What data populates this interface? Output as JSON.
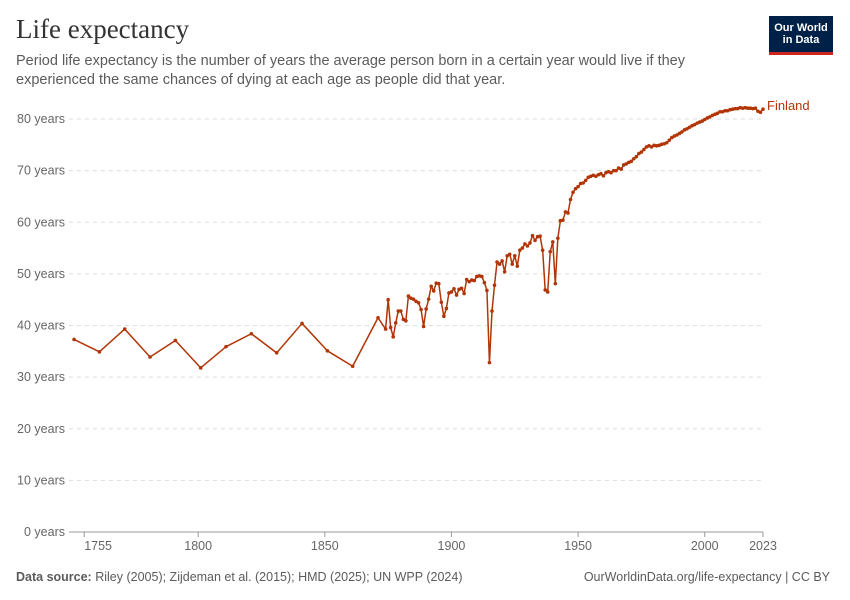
{
  "header": {
    "title": "Life expectancy",
    "subtitle": "Period life expectancy is the number of years the average person born in a certain year would live if they experienced the same chances of dying at each age as people did that year."
  },
  "logo": {
    "line1": "Our World",
    "line2": "in Data",
    "bg_color": "#002147",
    "accent_color": "#ce261e"
  },
  "footer": {
    "source_label": "Data source:",
    "source_text": "Riley (2005); Zijdeman et al. (2015); HMD (2025); UN WPP (2024)",
    "credit": "OurWorldinData.org/life-expectancy | CC BY"
  },
  "chart_data": {
    "type": "line",
    "xlim": [
      1749,
      2023
    ],
    "ylim": [
      0,
      80
    ],
    "x_ticks": [
      1755,
      1800,
      1850,
      1900,
      1950,
      2000,
      2023
    ],
    "y_ticks": [
      {
        "value": 0,
        "label": "0 years"
      },
      {
        "value": 10,
        "label": "10 years"
      },
      {
        "value": 20,
        "label": "20 years"
      },
      {
        "value": 30,
        "label": "30 years"
      },
      {
        "value": 40,
        "label": "40 years"
      },
      {
        "value": 50,
        "label": "50 years"
      },
      {
        "value": 60,
        "label": "60 years"
      },
      {
        "value": 70,
        "label": "70 years"
      },
      {
        "value": 80,
        "label": "80 years"
      }
    ],
    "grid": "horizontal-dashed",
    "series": [
      {
        "name": "Finland",
        "color": "#b13507",
        "points": [
          [
            1751,
            37.3
          ],
          [
            1761,
            34.9
          ],
          [
            1771,
            39.3
          ],
          [
            1781,
            33.9
          ],
          [
            1791,
            37.1
          ],
          [
            1801,
            31.8
          ],
          [
            1811,
            35.9
          ],
          [
            1821,
            38.4
          ],
          [
            1831,
            34.7
          ],
          [
            1841,
            40.4
          ],
          [
            1851,
            35.1
          ],
          [
            1861,
            32.1
          ],
          [
            1871,
            41.5
          ],
          [
            1874,
            39.3
          ],
          [
            1875,
            45.0
          ],
          [
            1876,
            39.6
          ],
          [
            1877,
            37.8
          ],
          [
            1878,
            40.5
          ],
          [
            1879,
            42.8
          ],
          [
            1880,
            42.8
          ],
          [
            1881,
            41.2
          ],
          [
            1882,
            40.9
          ],
          [
            1883,
            45.7
          ],
          [
            1884,
            45.3
          ],
          [
            1885,
            45.1
          ],
          [
            1886,
            44.7
          ],
          [
            1887,
            44.4
          ],
          [
            1888,
            43.1
          ],
          [
            1889,
            39.8
          ],
          [
            1890,
            43.2
          ],
          [
            1891,
            45.1
          ],
          [
            1892,
            47.6
          ],
          [
            1893,
            46.7
          ],
          [
            1894,
            48.2
          ],
          [
            1895,
            48.1
          ],
          [
            1896,
            44.5
          ],
          [
            1897,
            41.8
          ],
          [
            1898,
            43.3
          ],
          [
            1899,
            46.3
          ],
          [
            1900,
            46.5
          ],
          [
            1901,
            47.1
          ],
          [
            1902,
            45.9
          ],
          [
            1903,
            47.0
          ],
          [
            1904,
            47.2
          ],
          [
            1905,
            46.2
          ],
          [
            1906,
            48.9
          ],
          [
            1907,
            48.5
          ],
          [
            1908,
            48.8
          ],
          [
            1909,
            48.7
          ],
          [
            1910,
            49.5
          ],
          [
            1911,
            49.6
          ],
          [
            1912,
            49.5
          ],
          [
            1913,
            48.3
          ],
          [
            1914,
            46.8
          ],
          [
            1915,
            32.8
          ],
          [
            1916,
            42.8
          ],
          [
            1917,
            47.8
          ],
          [
            1918,
            52.3
          ],
          [
            1919,
            51.9
          ],
          [
            1920,
            52.5
          ],
          [
            1921,
            50.4
          ],
          [
            1922,
            53.5
          ],
          [
            1923,
            53.8
          ],
          [
            1924,
            51.9
          ],
          [
            1925,
            53.5
          ],
          [
            1926,
            51.5
          ],
          [
            1927,
            54.6
          ],
          [
            1928,
            55.0
          ],
          [
            1929,
            55.8
          ],
          [
            1930,
            55.4
          ],
          [
            1931,
            56.0
          ],
          [
            1932,
            57.4
          ],
          [
            1933,
            56.5
          ],
          [
            1934,
            57.2
          ],
          [
            1935,
            57.3
          ],
          [
            1936,
            54.6
          ],
          [
            1937,
            46.9
          ],
          [
            1938,
            46.5
          ],
          [
            1939,
            54.3
          ],
          [
            1940,
            56.2
          ],
          [
            1941,
            48.1
          ],
          [
            1942,
            56.9
          ],
          [
            1943,
            60.3
          ],
          [
            1944,
            60.4
          ],
          [
            1945,
            62.0
          ],
          [
            1946,
            61.8
          ],
          [
            1947,
            64.4
          ],
          [
            1948,
            65.8
          ],
          [
            1949,
            66.5
          ],
          [
            1950,
            66.9
          ],
          [
            1951,
            67.5
          ],
          [
            1952,
            67.6
          ],
          [
            1953,
            68.1
          ],
          [
            1954,
            68.7
          ],
          [
            1955,
            68.9
          ],
          [
            1956,
            69.1
          ],
          [
            1957,
            68.9
          ],
          [
            1958,
            69.2
          ],
          [
            1959,
            69.4
          ],
          [
            1960,
            69.0
          ],
          [
            1961,
            69.6
          ],
          [
            1962,
            69.8
          ],
          [
            1963,
            69.6
          ],
          [
            1964,
            70.0
          ],
          [
            1965,
            70.0
          ],
          [
            1966,
            70.5
          ],
          [
            1967,
            70.3
          ],
          [
            1968,
            71.1
          ],
          [
            1969,
            71.3
          ],
          [
            1970,
            71.6
          ],
          [
            1971,
            71.8
          ],
          [
            1972,
            72.3
          ],
          [
            1973,
            72.7
          ],
          [
            1974,
            73.3
          ],
          [
            1975,
            73.6
          ],
          [
            1976,
            74.1
          ],
          [
            1977,
            74.6
          ],
          [
            1978,
            74.8
          ],
          [
            1979,
            74.6
          ],
          [
            1980,
            74.9
          ],
          [
            1981,
            74.8
          ],
          [
            1982,
            74.9
          ],
          [
            1983,
            75.1
          ],
          [
            1984,
            75.2
          ],
          [
            1985,
            75.4
          ],
          [
            1986,
            75.9
          ],
          [
            1987,
            76.4
          ],
          [
            1988,
            76.7
          ],
          [
            1989,
            76.9
          ],
          [
            1990,
            77.2
          ],
          [
            1991,
            77.5
          ],
          [
            1992,
            77.9
          ],
          [
            1993,
            78.1
          ],
          [
            1994,
            78.4
          ],
          [
            1995,
            78.7
          ],
          [
            1996,
            78.9
          ],
          [
            1997,
            79.2
          ],
          [
            1998,
            79.4
          ],
          [
            1999,
            79.6
          ],
          [
            2000,
            79.9
          ],
          [
            2001,
            80.2
          ],
          [
            2002,
            80.4
          ],
          [
            2003,
            80.7
          ],
          [
            2004,
            80.9
          ],
          [
            2005,
            81.1
          ],
          [
            2006,
            81.4
          ],
          [
            2007,
            81.4
          ],
          [
            2008,
            81.6
          ],
          [
            2009,
            81.6
          ],
          [
            2010,
            81.8
          ],
          [
            2011,
            81.9
          ],
          [
            2012,
            82.0
          ],
          [
            2013,
            82.0
          ],
          [
            2014,
            82.2
          ],
          [
            2015,
            82.1
          ],
          [
            2016,
            82.2
          ],
          [
            2017,
            82.1
          ],
          [
            2018,
            82.1
          ],
          [
            2019,
            82.0
          ],
          [
            2020,
            82.1
          ],
          [
            2021,
            81.5
          ],
          [
            2022,
            81.3
          ],
          [
            2023,
            81.9
          ]
        ]
      }
    ]
  }
}
